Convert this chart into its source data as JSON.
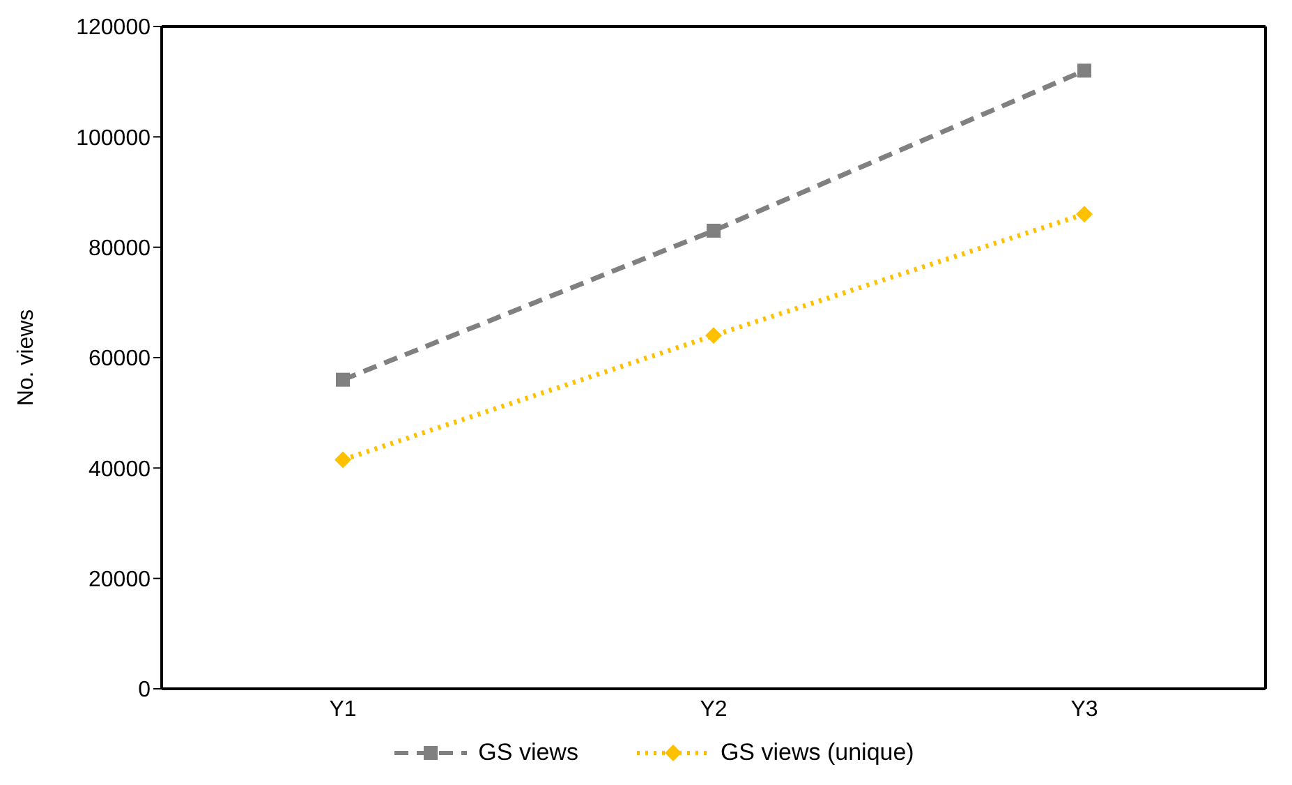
{
  "chart_data": {
    "type": "line",
    "ylabel": "No. views",
    "categories": [
      "Y1",
      "Y2",
      "Y3"
    ],
    "series": [
      {
        "name": "GS views",
        "color": "#808080",
        "values": [
          56000,
          83000,
          112000
        ],
        "marker": "square",
        "line_style": "dashed"
      },
      {
        "name": "GS views (unique)",
        "color": "#ffc000",
        "values": [
          41500,
          64000,
          86000
        ],
        "marker": "diamond",
        "line_style": "dotted"
      }
    ],
    "ylim": [
      0,
      120000
    ],
    "yticks": [
      0,
      20000,
      40000,
      60000,
      80000,
      100000,
      120000
    ],
    "grid": false,
    "legend": "bottom"
  }
}
